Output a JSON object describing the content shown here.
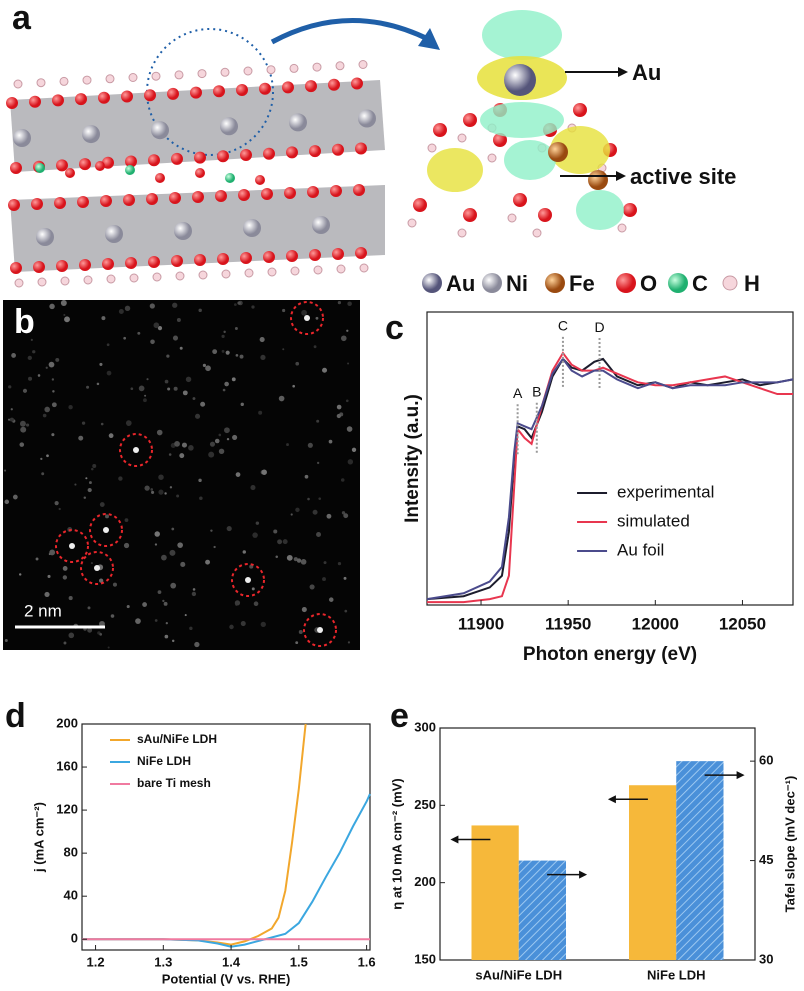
{
  "panel_a": {
    "label": "a",
    "callouts": [
      "Au",
      "active site"
    ],
    "legend": [
      "Au",
      "Ni",
      "Fe",
      "O",
      "C",
      "H"
    ]
  },
  "panel_b": {
    "label": "b",
    "scale_bar": "2 nm"
  },
  "chart_data": [
    {
      "type": "line",
      "panel_label": "c",
      "xlabel": "Photon energy (eV)",
      "ylabel": "Intensity (a.u.)",
      "x": [
        11869,
        11890,
        11905,
        11912,
        11916,
        11919,
        11921,
        11925,
        11929,
        11935,
        11941,
        11947,
        11952,
        11958,
        11965,
        11970,
        11978,
        11990,
        12000,
        12010,
        12020,
        12030,
        12040,
        12050,
        12060,
        12070,
        12079
      ],
      "series": [
        {
          "name": "experimental",
          "color": "#1c1c2c",
          "values": [
            0.02,
            0.03,
            0.06,
            0.1,
            0.25,
            0.5,
            0.61,
            0.6,
            0.57,
            0.66,
            0.78,
            0.84,
            0.81,
            0.8,
            0.83,
            0.84,
            0.78,
            0.75,
            0.76,
            0.74,
            0.76,
            0.75,
            0.76,
            0.77,
            0.75,
            0.76,
            0.77
          ]
        },
        {
          "name": "simulated",
          "color": "#e8364f",
          "values": [
            0.01,
            0.01,
            0.02,
            0.03,
            0.1,
            0.4,
            0.6,
            0.57,
            0.55,
            0.68,
            0.8,
            0.86,
            0.82,
            0.8,
            0.8,
            0.81,
            0.79,
            0.76,
            0.75,
            0.75,
            0.76,
            0.77,
            0.78,
            0.76,
            0.74,
            0.72,
            0.72
          ]
        },
        {
          "name": "Au foil",
          "color": "#4b4b8c",
          "values": [
            0.02,
            0.04,
            0.08,
            0.13,
            0.3,
            0.52,
            0.62,
            0.61,
            0.6,
            0.68,
            0.79,
            0.84,
            0.8,
            0.78,
            0.8,
            0.8,
            0.77,
            0.74,
            0.76,
            0.74,
            0.75,
            0.75,
            0.75,
            0.76,
            0.76,
            0.76,
            0.77
          ]
        }
      ],
      "annotations": [
        {
          "text": "A",
          "x": 11921
        },
        {
          "text": "B",
          "x": 11932
        },
        {
          "text": "C",
          "x": 11947
        },
        {
          "text": "D",
          "x": 11968
        }
      ],
      "xlim": [
        11869,
        12079
      ],
      "xticks": [
        11900,
        11950,
        12000,
        12050
      ],
      "ylim": [
        0,
        1
      ],
      "legend": "lower right"
    },
    {
      "type": "line",
      "panel_label": "d",
      "xlabel": "Potential (V vs. RHE)",
      "ylabel": "j (mA cm⁻²)",
      "series": [
        {
          "name": "sAu/NiFe LDH",
          "color": "#f2a72c",
          "x": [
            1.18,
            1.3,
            1.35,
            1.38,
            1.4,
            1.42,
            1.44,
            1.46,
            1.47,
            1.48,
            1.49,
            1.5,
            1.51
          ],
          "values": [
            0,
            0,
            -1,
            -3,
            -5,
            -2,
            3,
            10,
            20,
            45,
            90,
            140,
            200
          ]
        },
        {
          "name": "NiFe LDH",
          "color": "#3ba7e0",
          "x": [
            1.18,
            1.3,
            1.35,
            1.38,
            1.4,
            1.42,
            1.45,
            1.48,
            1.5,
            1.52,
            1.54,
            1.56,
            1.58,
            1.6,
            1.605
          ],
          "values": [
            0,
            0,
            -1,
            -4,
            -7,
            -5,
            0,
            5,
            15,
            35,
            58,
            80,
            105,
            128,
            135
          ]
        },
        {
          "name": "bare Ti mesh",
          "color": "#f07aa0",
          "x": [
            1.18,
            1.605
          ],
          "values": [
            0,
            0
          ]
        }
      ],
      "xlim": [
        1.18,
        1.605
      ],
      "xticks": [
        1.2,
        1.3,
        1.4,
        1.5,
        1.6
      ],
      "ylim": [
        -10,
        200
      ],
      "yticks": [
        0,
        40,
        80,
        120,
        160,
        200
      ],
      "legend": "upper left"
    },
    {
      "type": "bar",
      "panel_label": "e",
      "categories": [
        "sAu/NiFe LDH",
        "NiFe LDH"
      ],
      "ylabel": "η at 10 mA cm⁻² (mV)",
      "y2label": "Tafel slope (mV dec⁻¹)",
      "series": [
        {
          "color": "#f6b83a",
          "values": [
            237,
            263
          ]
        },
        {
          "color": "#4a90d9",
          "hatch": true,
          "axis": "y2",
          "values": [
            45,
            60
          ]
        }
      ],
      "ylim": [
        150,
        300
      ],
      "yticks": [
        150,
        200,
        250,
        300
      ],
      "y2lim": [
        30,
        65
      ],
      "y2ticks": [
        30,
        45,
        60
      ]
    }
  ]
}
